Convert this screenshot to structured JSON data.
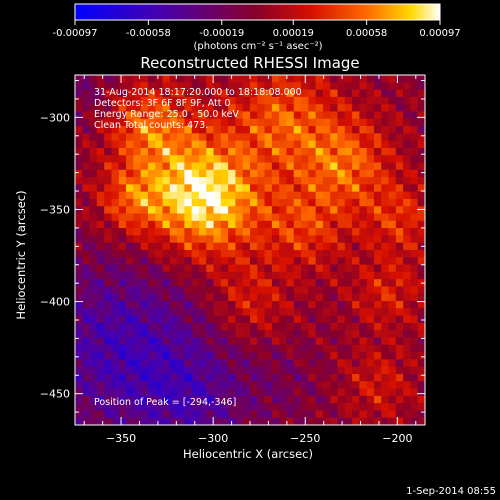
{
  "chart_data": {
    "type": "heatmap",
    "title": "Reconstructed RHESSI Image",
    "xlabel": "Heliocentric X (arcsec)",
    "ylabel": "Heliocentric Y (arcsec)",
    "xlim": [
      -375,
      -185
    ],
    "ylim": [
      -467,
      -277
    ],
    "x_ticks": [
      -350,
      -300,
      -250,
      -200
    ],
    "y_ticks": [
      -300,
      -350,
      -400,
      -450
    ],
    "colorbar": {
      "range": [
        -0.00097,
        0.00097
      ],
      "tick_values": [
        -0.00097,
        -0.00058,
        -0.00019,
        0.00019,
        0.00058,
        0.00097
      ],
      "tick_labels": [
        "-0.00097",
        "-0.00058",
        "-0.00019",
        "0.00019",
        "0.00058",
        "0.00097"
      ],
      "units_label": "(photons cm⁻² s⁻¹ asec⁻²)"
    },
    "annotations": [
      "31-Aug-2014 18:17:20.000 to 18:18:08.000",
      "Detectors: 3F 6F 8F 9F, Att 0",
      "Energy Range: 25.0 - 50.0 keV",
      "Clean    Total counts: 473."
    ],
    "peak_label": "Position of Peak = [-294,-346]",
    "peak_position": [
      -294,
      -346
    ],
    "grid_n": 48,
    "sources": [
      {
        "x": -305,
        "y": -343,
        "amp": 0.00097,
        "sigma": 22
      },
      {
        "x": -335,
        "y": -305,
        "amp": 0.00052,
        "sigma": 16
      },
      {
        "x": -345,
        "y": -345,
        "amp": 0.00042,
        "sigma": 13
      },
      {
        "x": -262,
        "y": -300,
        "amp": 0.00048,
        "sigma": 20
      },
      {
        "x": -228,
        "y": -325,
        "amp": 0.00052,
        "sigma": 18
      },
      {
        "x": -250,
        "y": -360,
        "amp": 0.00038,
        "sigma": 16
      },
      {
        "x": -198,
        "y": -355,
        "amp": 0.00035,
        "sigma": 14
      },
      {
        "x": -205,
        "y": -395,
        "amp": 0.0003,
        "sigma": 14
      },
      {
        "x": -280,
        "y": -400,
        "amp": 0.0003,
        "sigma": 15
      },
      {
        "x": -210,
        "y": -445,
        "amp": 0.00026,
        "sigma": 14
      },
      {
        "x": -350,
        "y": -425,
        "amp": -0.0005,
        "sigma": 34
      },
      {
        "x": -310,
        "y": -455,
        "amp": -0.00032,
        "sigma": 22
      },
      {
        "x": -370,
        "y": -285,
        "amp": -0.00018,
        "sigma": 14
      },
      {
        "x": -260,
        "y": -445,
        "amp": -0.00012,
        "sigma": 16
      }
    ],
    "ripple_amplitude": 0.00017
  },
  "timestamp": "1-Sep-2014 08:55"
}
